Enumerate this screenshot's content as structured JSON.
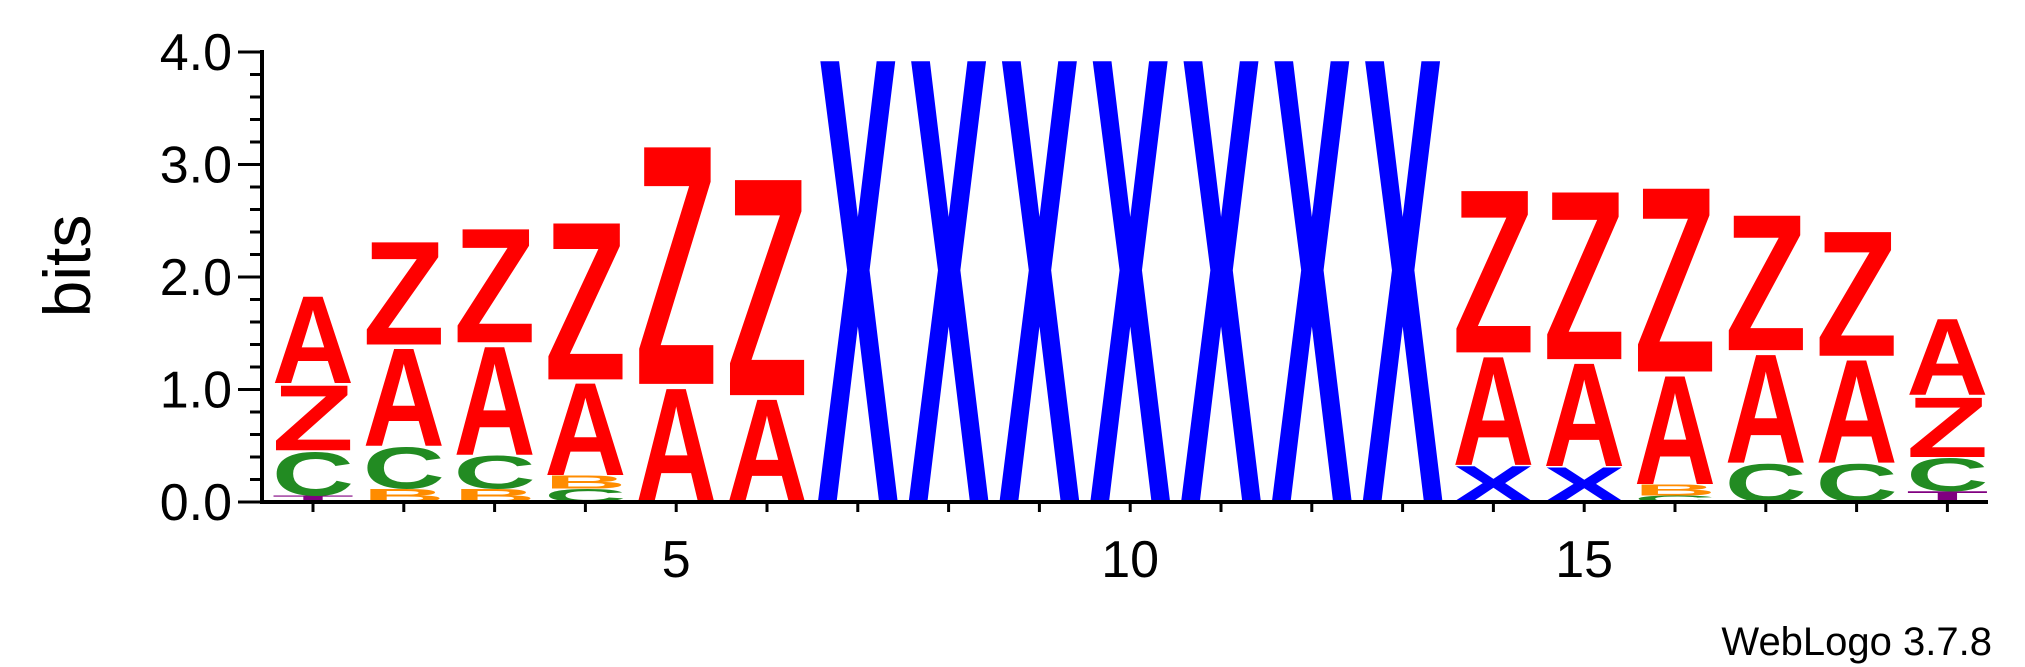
{
  "chart_data": {
    "type": "sequence-logo",
    "ylabel": "bits",
    "ylim": [
      0,
      4.0
    ],
    "y_ticks": [
      {
        "value": 0.0,
        "label": "0.0"
      },
      {
        "value": 1.0,
        "label": "1.0"
      },
      {
        "value": 2.0,
        "label": "2.0"
      },
      {
        "value": 3.0,
        "label": "3.0"
      },
      {
        "value": 4.0,
        "label": "4.0"
      }
    ],
    "y_minor_step": 0.2,
    "positions": [
      1,
      2,
      3,
      4,
      5,
      6,
      7,
      8,
      9,
      10,
      11,
      12,
      13,
      14,
      15,
      16,
      17,
      18,
      19
    ],
    "x_ticks": [
      {
        "value": 5,
        "label": "5"
      },
      {
        "value": 10,
        "label": "10"
      },
      {
        "value": 15,
        "label": "15"
      }
    ],
    "colors": {
      "A": "#ff0000",
      "Z": "#ff0000",
      "X": "#0000ff",
      "C": "#228b22",
      "B": "#ff8c00",
      "T": "#800080"
    },
    "stacks": [
      [
        {
          "letter": "T",
          "height": 0.06
        },
        {
          "letter": "C",
          "height": 0.4
        },
        {
          "letter": "Z",
          "height": 0.6
        },
        {
          "letter": "A",
          "height": 0.8
        }
      ],
      [
        {
          "letter": "B",
          "height": 0.12
        },
        {
          "letter": "C",
          "height": 0.38
        },
        {
          "letter": "A",
          "height": 0.9
        },
        {
          "letter": "Z",
          "height": 0.95
        }
      ],
      [
        {
          "letter": "B",
          "height": 0.12
        },
        {
          "letter": "C",
          "height": 0.3
        },
        {
          "letter": "A",
          "height": 1.0
        },
        {
          "letter": "Z",
          "height": 1.05
        }
      ],
      [
        {
          "letter": "C",
          "height": 0.12
        },
        {
          "letter": "B",
          "height": 0.12
        },
        {
          "letter": "A",
          "height": 0.85
        },
        {
          "letter": "Z",
          "height": 1.45
        }
      ],
      [
        {
          "letter": "A",
          "height": 1.05
        },
        {
          "letter": "Z",
          "height": 2.2
        }
      ],
      [
        {
          "letter": "A",
          "height": 0.95
        },
        {
          "letter": "Z",
          "height": 2.0
        }
      ],
      [
        {
          "letter": "X",
          "height": 4.1
        }
      ],
      [
        {
          "letter": "X",
          "height": 4.1
        }
      ],
      [
        {
          "letter": "X",
          "height": 4.1
        }
      ],
      [
        {
          "letter": "X",
          "height": 4.1
        }
      ],
      [
        {
          "letter": "X",
          "height": 4.1
        }
      ],
      [
        {
          "letter": "X",
          "height": 4.1
        }
      ],
      [
        {
          "letter": "X",
          "height": 4.1
        }
      ],
      [
        {
          "letter": "X",
          "height": 0.33
        },
        {
          "letter": "A",
          "height": 1.0
        },
        {
          "letter": "Z",
          "height": 1.5
        }
      ],
      [
        {
          "letter": "X",
          "height": 0.32
        },
        {
          "letter": "A",
          "height": 0.95
        },
        {
          "letter": "Z",
          "height": 1.55
        }
      ],
      [
        {
          "letter": "C",
          "height": 0.06
        },
        {
          "letter": "B",
          "height": 0.1
        },
        {
          "letter": "A",
          "height": 1.0
        },
        {
          "letter": "Z",
          "height": 1.7
        }
      ],
      [
        {
          "letter": "C",
          "height": 0.35
        },
        {
          "letter": "A",
          "height": 1.0
        },
        {
          "letter": "Z",
          "height": 1.25
        }
      ],
      [
        {
          "letter": "C",
          "height": 0.35
        },
        {
          "letter": "A",
          "height": 0.95
        },
        {
          "letter": "Z",
          "height": 1.15
        }
      ],
      [
        {
          "letter": "T",
          "height": 0.1
        },
        {
          "letter": "C",
          "height": 0.3
        },
        {
          "letter": "Z",
          "height": 0.55
        },
        {
          "letter": "A",
          "height": 0.7
        }
      ]
    ]
  },
  "footer": {
    "credit": "WebLogo 3.7.8"
  }
}
